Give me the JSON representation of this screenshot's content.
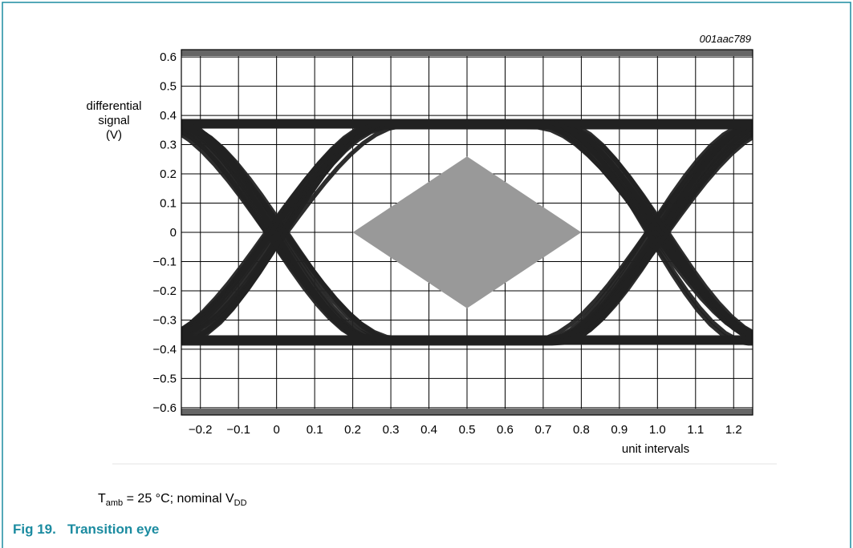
{
  "chart_data": {
    "type": "line",
    "figure_id": "001aac789",
    "xlabel": "unit intervals",
    "ylabel": [
      "differential",
      "signal",
      "(V)"
    ],
    "xlim": [
      -0.25,
      1.25
    ],
    "ylim": [
      -0.625,
      0.625
    ],
    "x_ticks": [
      -0.2,
      -0.1,
      0,
      0.1,
      0.2,
      0.3,
      0.4,
      0.5,
      0.6,
      0.7,
      0.8,
      0.9,
      1.0,
      1.1,
      1.2
    ],
    "x_tick_labels": [
      "−0.2",
      "−0.1",
      "0",
      "0.1",
      "0.2",
      "0.3",
      "0.4",
      "0.5",
      "0.6",
      "0.7",
      "0.8",
      "0.9",
      "1.0",
      "1.1",
      "1.2"
    ],
    "y_ticks": [
      0.6,
      0.5,
      0.4,
      0.3,
      0.2,
      0.1,
      0,
      -0.1,
      -0.2,
      -0.3,
      -0.4,
      -0.5,
      -0.6
    ],
    "y_tick_labels": [
      "0.6",
      "0.5",
      "0.4",
      "0.3",
      "0.2",
      "0.1",
      "0",
      "−0.1",
      "−0.2",
      "−0.3",
      "−0.4",
      "−0.5",
      "−0.6"
    ],
    "grid": true,
    "eye": {
      "upper_level_v": 0.38,
      "lower_level_v": -0.38,
      "crossings_ui": [
        0,
        1.0
      ],
      "mask": [
        [
          0.2,
          0
        ],
        [
          0.5,
          0.26
        ],
        [
          0.8,
          0
        ],
        [
          0.5,
          -0.26
        ]
      ]
    },
    "colors": {
      "trace": "#222222",
      "mask": "#999999",
      "grid": "#000000",
      "band": "#666666"
    }
  },
  "caption": {
    "t_prefix": "T",
    "t_sub": "amb",
    "t_text": " = 25 °C; nominal V",
    "vdd_sub": "DD"
  },
  "figure": {
    "number": "Fig 19.",
    "title": "Transition eye"
  },
  "colors": {
    "accent": "#1b8ba0"
  }
}
